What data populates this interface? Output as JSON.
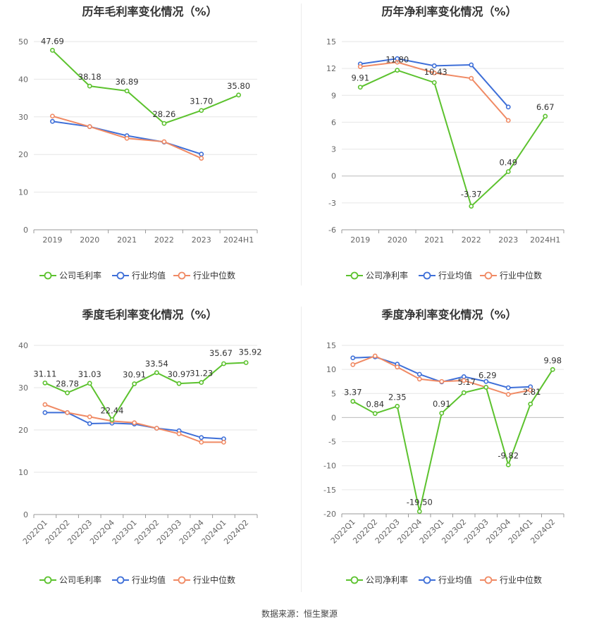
{
  "footer": "数据来源：恒生聚源",
  "colors": {
    "company": "#5cc22e",
    "avg": "#3e6fd8",
    "median": "#f08a64"
  },
  "chart_data": [
    {
      "id": "annual-gross",
      "type": "line",
      "title": "历年毛利率变化情况（%）",
      "categories": [
        "2019",
        "2020",
        "2021",
        "2022",
        "2023",
        "2024H1"
      ],
      "ylim": [
        0,
        50
      ],
      "yticks": [
        0,
        10,
        20,
        30,
        40,
        50
      ],
      "series": [
        {
          "name": "公司毛利率",
          "values": [
            47.69,
            38.18,
            36.89,
            28.26,
            31.7,
            35.8
          ],
          "labels": [
            "47.69",
            "38.18",
            "36.89",
            "28.26",
            "31.70",
            "35.80"
          ]
        },
        {
          "name": "行业均值",
          "values": [
            28.8,
            27.4,
            25.0,
            23.3,
            20.1,
            null
          ]
        },
        {
          "name": "行业中位数",
          "values": [
            30.2,
            27.4,
            24.3,
            23.4,
            19.0,
            null
          ]
        }
      ],
      "legend": "bottom"
    },
    {
      "id": "annual-net",
      "type": "line",
      "title": "历年净利率变化情况（%）",
      "categories": [
        "2019",
        "2020",
        "2021",
        "2022",
        "2023",
        "2024H1"
      ],
      "ylim": [
        -6,
        15
      ],
      "yticks": [
        -6,
        -3,
        0,
        3,
        6,
        9,
        12,
        15
      ],
      "series": [
        {
          "name": "公司净利率",
          "values": [
            9.91,
            11.8,
            10.43,
            -3.37,
            0.49,
            6.67
          ],
          "labels": [
            "9.91",
            "11.80",
            "10.43",
            "-3.37",
            "0.49",
            "6.67"
          ]
        },
        {
          "name": "行业均值",
          "values": [
            12.5,
            13.1,
            12.3,
            12.4,
            7.7,
            null
          ]
        },
        {
          "name": "行业中位数",
          "values": [
            12.2,
            12.7,
            11.5,
            10.9,
            6.2,
            null
          ]
        }
      ],
      "legend": "bottom"
    },
    {
      "id": "quarter-gross",
      "type": "line",
      "title": "季度毛利率变化情况（%）",
      "categories": [
        "2022Q1",
        "2022Q2",
        "2022Q3",
        "2022Q4",
        "2023Q1",
        "2023Q2",
        "2023Q3",
        "2023Q4",
        "2024Q1",
        "2024Q2"
      ],
      "ylim": [
        0,
        40
      ],
      "yticks": [
        0,
        10,
        20,
        30,
        40
      ],
      "series": [
        {
          "name": "公司毛利率",
          "values": [
            31.11,
            28.78,
            31.03,
            22.44,
            30.91,
            33.54,
            30.97,
            31.23,
            35.67,
            35.92
          ],
          "labels": [
            "31.11",
            "28.78",
            "31.03",
            "22.44",
            "30.91",
            "33.54",
            "30.97",
            "31.23",
            "35.67",
            "35.92"
          ]
        },
        {
          "name": "行业均值",
          "values": [
            24.1,
            24.1,
            21.5,
            21.6,
            21.4,
            20.4,
            19.8,
            18.2,
            17.9,
            null
          ]
        },
        {
          "name": "行业中位数",
          "values": [
            26.0,
            24.1,
            23.1,
            22.1,
            21.7,
            20.4,
            19.1,
            17.1,
            17.1,
            null
          ]
        }
      ],
      "legend": "bottom"
    },
    {
      "id": "quarter-net",
      "type": "line",
      "title": "季度净利率变化情况（%）",
      "categories": [
        "2022Q1",
        "2022Q2",
        "2022Q3",
        "2022Q4",
        "2023Q1",
        "2023Q2",
        "2023Q3",
        "2023Q4",
        "2024Q1",
        "2024Q2"
      ],
      "ylim": [
        -20,
        15
      ],
      "yticks": [
        -20,
        -15,
        -10,
        -5,
        0,
        5,
        10,
        15
      ],
      "series": [
        {
          "name": "公司净利率",
          "values": [
            3.37,
            0.84,
            2.35,
            -19.5,
            0.91,
            5.17,
            6.29,
            -9.82,
            2.81,
            9.98
          ],
          "labels": [
            "3.37",
            "0.84",
            "2.35",
            "-19.50",
            "0.91",
            "5.17",
            "6.29",
            "-9.82",
            "2.81",
            "9.98"
          ]
        },
        {
          "name": "行业均值",
          "values": [
            12.4,
            12.6,
            11.1,
            9.0,
            7.4,
            8.5,
            7.5,
            6.2,
            6.4,
            null
          ]
        },
        {
          "name": "行业中位数",
          "values": [
            11.0,
            12.8,
            10.5,
            8.0,
            7.5,
            7.7,
            6.3,
            4.8,
            5.7,
            null
          ]
        }
      ],
      "legend": "bottom"
    }
  ]
}
